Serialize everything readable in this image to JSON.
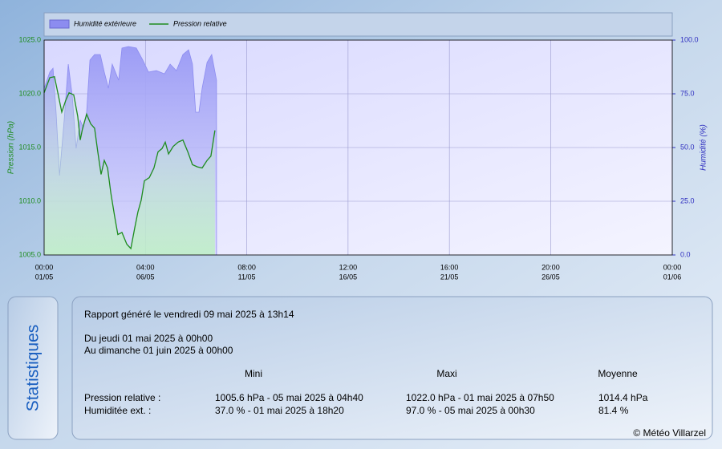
{
  "chart_data": {
    "type": "line",
    "legend": "top",
    "y_label": "Pression (hPa)",
    "y2_label": "Humidité (%)",
    "xlim": [
      0,
      31
    ],
    "xticks": [
      {
        "value": 0,
        "label": [
          "00:00",
          "01/05"
        ]
      },
      {
        "value": 5,
        "label": [
          "04:00",
          "06/05"
        ]
      },
      {
        "value": 10,
        "label": [
          "08:00",
          "11/05"
        ]
      },
      {
        "value": 15,
        "label": [
          "12:00",
          "16/05"
        ]
      },
      {
        "value": 20,
        "label": [
          "16:00",
          "21/05"
        ]
      },
      {
        "value": 25,
        "label": [
          "20:00",
          "26/05"
        ]
      },
      {
        "value": 31,
        "label": [
          "00:00",
          "01/06"
        ]
      }
    ],
    "ylim": [
      1005,
      1025
    ],
    "yticks": [
      {
        "value": 1005,
        "label": "1005.0"
      },
      {
        "value": 1010,
        "label": "1010.0"
      },
      {
        "value": 1015,
        "label": "1015.0"
      },
      {
        "value": 1020,
        "label": "1020.0"
      },
      {
        "value": 1025,
        "label": "1025.0"
      }
    ],
    "y2lim": [
      0,
      100
    ],
    "y2ticks": [
      {
        "value": 0,
        "label": "0.0"
      },
      {
        "value": 25,
        "label": "25.0"
      },
      {
        "value": 50,
        "label": "50.0"
      },
      {
        "value": 75,
        "label": "75.0"
      },
      {
        "value": 100,
        "label": "100.0"
      }
    ],
    "grid": true,
    "series": [
      {
        "name": "Humidité extérieure",
        "color": "#8c8cf0",
        "axis": "y2",
        "kind": "area",
        "x": [
          0,
          0.28,
          0.44,
          0.59,
          0.76,
          0.99,
          1.19,
          1.39,
          1.58,
          1.78,
          1.94,
          2.1,
          2.26,
          2.49,
          2.77,
          2.97,
          3.17,
          3.36,
          3.68,
          3.84,
          4.16,
          4.55,
          4.87,
          5.15,
          5.54,
          5.94,
          6.22,
          6.53,
          6.85,
          7.13,
          7.32,
          7.48,
          7.64,
          7.8,
          8.04,
          8.27,
          8.51
        ],
        "values": [
          77.6,
          85.1,
          86.9,
          66.4,
          37.0,
          62.7,
          88.8,
          73.9,
          49.6,
          62.7,
          59.0,
          66.4,
          90.7,
          93.3,
          93.3,
          85.1,
          77.6,
          88.8,
          81.3,
          96.3,
          97.0,
          96.3,
          90.7,
          85.1,
          85.8,
          84.3,
          88.8,
          85.8,
          93.3,
          95.5,
          88.8,
          66.4,
          66.4,
          77.6,
          89.6,
          93.3,
          81.3
        ]
      },
      {
        "name": "Pression relative",
        "color": "#1e8c1e",
        "axis": "y",
        "kind": "line",
        "x": [
          0,
          0.28,
          0.51,
          0.71,
          0.87,
          1.07,
          1.23,
          1.46,
          1.66,
          1.78,
          1.9,
          2.1,
          2.3,
          2.49,
          2.65,
          2.81,
          2.97,
          3.13,
          3.29,
          3.48,
          3.64,
          3.84,
          4.08,
          4.28,
          4.47,
          4.63,
          4.79,
          4.95,
          5.19,
          5.42,
          5.62,
          5.82,
          5.98,
          6.14,
          6.37,
          6.61,
          6.85,
          7.09,
          7.32,
          7.56,
          7.8,
          8.04,
          8.23,
          8.43
        ],
        "values": [
          1020.1,
          1021.5,
          1021.6,
          1019.8,
          1018.3,
          1019.4,
          1020.1,
          1019.9,
          1017.9,
          1015.7,
          1016.8,
          1018.1,
          1017.2,
          1016.8,
          1014.6,
          1012.5,
          1013.8,
          1013.1,
          1010.8,
          1008.6,
          1006.9,
          1007.1,
          1006.0,
          1005.6,
          1007.5,
          1009.0,
          1010.1,
          1011.9,
          1012.2,
          1013.1,
          1014.6,
          1014.9,
          1015.5,
          1014.4,
          1015.1,
          1015.5,
          1015.7,
          1014.6,
          1013.4,
          1013.2,
          1013.1,
          1013.8,
          1014.2,
          1016.6
        ]
      }
    ]
  },
  "stats": {
    "title": "Statistiques",
    "generated": "Rapport généré le vendredi 09 mai 2025 à 13h14",
    "period": [
      "Du jeudi 01 mai 2025 à 00h00",
      "Au dimanche 01 juin 2025 à 00h00"
    ],
    "columns": [
      "Mini",
      "Maxi",
      "Moyenne"
    ],
    "rows": [
      [
        "Pression relative :",
        "1005.6 hPa - 05 mai 2025 à 04h40",
        "1022.0 hPa - 01 mai 2025 à 07h50",
        "1014.4 hPa"
      ],
      [
        "Humiditée ext. :",
        "37.0 % - 01 mai 2025 à 18h20",
        "97.0 % - 05 mai 2025 à 00h30",
        "81.4 %"
      ]
    ]
  },
  "footer": "© Météo Villarzel"
}
